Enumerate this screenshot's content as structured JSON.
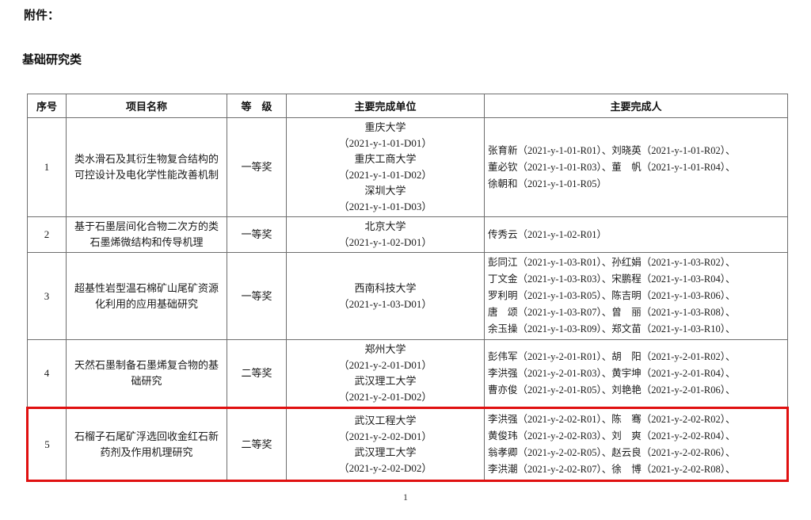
{
  "page": {
    "attachment_label": "附件：",
    "section_title": "基础研究类",
    "page_number": "1"
  },
  "highlight": {
    "row_index": 5,
    "color": "#e01010"
  },
  "table": {
    "headers": [
      "序号",
      "项目名称",
      "等　级",
      "主要完成单位",
      "主要完成人"
    ],
    "rows": [
      {
        "no": "1",
        "project": "类水滑石及其衍生物复合结构的可控设计及电化学性能改善机制",
        "grade": "一等奖",
        "units": [
          "重庆大学",
          "（2021-y-1-01-D01）",
          "重庆工商大学",
          "（2021-y-1-01-D02）",
          "深圳大学",
          "（2021-y-1-01-D03）"
        ],
        "people": [
          "张育新（2021-y-1-01-R01）、刘晓英（2021-y-1-01-R02）、",
          "董必钦（2021-y-1-01-R03）、董　帆（2021-y-1-01-R04）、",
          "徐朝和（2021-y-1-01-R05）"
        ],
        "highlighted": false
      },
      {
        "no": "2",
        "project": "基于石墨层间化合物二次方的类石墨烯微结构和传导机理",
        "grade": "一等奖",
        "units": [
          "北京大学",
          "（2021-y-1-02-D01）"
        ],
        "people": [
          "传秀云（2021-y-1-02-R01）"
        ],
        "highlighted": false
      },
      {
        "no": "3",
        "project": "超基性岩型温石棉矿山尾矿资源化利用的应用基础研究",
        "grade": "一等奖",
        "units": [
          "西南科技大学",
          "（2021-y-1-03-D01）"
        ],
        "people": [
          "彭同江（2021-y-1-03-R01）、孙红娟（2021-y-1-03-R02）、",
          "丁文金（2021-y-1-03-R03）、宋鹏程（2021-y-1-03-R04）、",
          "罗利明（2021-y-1-03-R05）、陈吉明（2021-y-1-03-R06）、",
          "唐　颂（2021-y-1-03-R07）、曾　丽（2021-y-1-03-R08）、",
          "余玉操（2021-y-1-03-R09）、郑文苗（2021-y-1-03-R10）、"
        ],
        "highlighted": false
      },
      {
        "no": "4",
        "project": "天然石墨制备石墨烯复合物的基础研究",
        "grade": "二等奖",
        "units": [
          "郑州大学",
          "（2021-y-2-01-D01）",
          "武汉理工大学",
          "（2021-y-2-01-D02）"
        ],
        "people": [
          "彭伟军（2021-y-2-01-R01）、胡　阳（2021-y-2-01-R02）、",
          "李洪强（2021-y-2-01-R03）、黄宇坤（2021-y-2-01-R04）、",
          "曹亦俊（2021-y-2-01-R05）、刘艳艳（2021-y-2-01-R06）、"
        ],
        "highlighted": false
      },
      {
        "no": "5",
        "project": "石榴子石尾矿浮选回收金红石新药剂及作用机理研究",
        "grade": "二等奖",
        "units": [
          "武汉工程大学",
          "（2021-y-2-02-D01）",
          "武汉理工大学",
          "（2021-y-2-02-D02）"
        ],
        "people": [
          "李洪强（2021-y-2-02-R01）、陈　骞（2021-y-2-02-R02）、",
          "黄俊玮（2021-y-2-02-R03）、刘　爽（2021-y-2-02-R04）、",
          "翁孝卿（2021-y-2-02-R05）、赵云良（2021-y-2-02-R06）、",
          "李洪潮（2021-y-2-02-R07）、徐　博（2021-y-2-02-R08）、"
        ],
        "highlighted": true
      }
    ]
  }
}
